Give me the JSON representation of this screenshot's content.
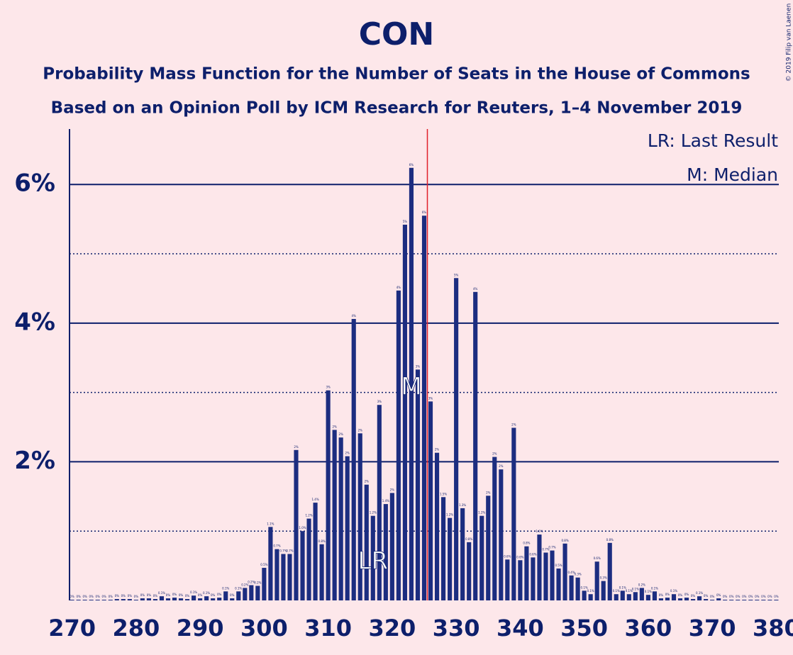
{
  "chart_data": {
    "type": "bar",
    "title": "CON",
    "subtitle": "Probability Mass Function for the Number of Seats in the House of Commons",
    "subtitle2": "Based on an Opinion Poll by ICM Research for Reuters, 1–4 November 2019",
    "legend_lr": "LR: Last Result",
    "legend_m": "M: Median",
    "copyright": "© 2019 Filip van Laenen",
    "color": "#1c2d80",
    "threshold_color": "#e0202a",
    "threshold": 325.5,
    "x": [
      270,
      271,
      272,
      273,
      274,
      275,
      276,
      277,
      278,
      279,
      280,
      281,
      282,
      283,
      284,
      285,
      286,
      287,
      288,
      289,
      290,
      291,
      292,
      293,
      294,
      295,
      296,
      297,
      298,
      299,
      300,
      301,
      302,
      303,
      304,
      305,
      306,
      307,
      308,
      309,
      310,
      311,
      312,
      313,
      314,
      315,
      316,
      317,
      318,
      319,
      320,
      321,
      322,
      323,
      324,
      325,
      326,
      327,
      328,
      329,
      330,
      331,
      332,
      333,
      334,
      335,
      336,
      337,
      338,
      339,
      340,
      341,
      342,
      343,
      344,
      345,
      346,
      347,
      348,
      349,
      350,
      351,
      352,
      353,
      354,
      355,
      356,
      357,
      358,
      359,
      360,
      361,
      362,
      363,
      364,
      365,
      366,
      367,
      368,
      369,
      370,
      371,
      372,
      373,
      374,
      375,
      376,
      377,
      378,
      379,
      380
    ],
    "values": [
      0.01,
      0.01,
      0.01,
      0.01,
      0.01,
      0.01,
      0.01,
      0.02,
      0.02,
      0.02,
      0.01,
      0.03,
      0.03,
      0.02,
      0.06,
      0.03,
      0.04,
      0.03,
      0.02,
      0.07,
      0.03,
      0.06,
      0.03,
      0.04,
      0.13,
      0.03,
      0.13,
      0.18,
      0.22,
      0.21,
      0.47,
      1.06,
      0.74,
      0.67,
      0.67,
      2.17,
      1.0,
      1.18,
      1.41,
      0.81,
      3.03,
      2.46,
      2.35,
      2.08,
      4.06,
      2.41,
      1.67,
      1.22,
      2.82,
      1.39,
      1.55,
      4.47,
      5.42,
      6.24,
      3.33,
      5.55,
      2.87,
      2.13,
      1.49,
      1.19,
      4.65,
      1.33,
      0.84,
      4.45,
      1.22,
      1.51,
      2.07,
      1.89,
      0.59,
      2.49,
      0.58,
      0.78,
      0.62,
      0.95,
      0.69,
      0.72,
      0.46,
      0.82,
      0.36,
      0.33,
      0.14,
      0.09,
      0.56,
      0.28,
      0.83,
      0.09,
      0.14,
      0.09,
      0.12,
      0.18,
      0.08,
      0.13,
      0.03,
      0.04,
      0.09,
      0.03,
      0.04,
      0.02,
      0.06,
      0.02,
      0.01,
      0.03,
      0.01,
      0.01,
      0.01,
      0.01,
      0.01,
      0.01,
      0.01,
      0.01,
      0.01
    ],
    "value_labels": [
      "0%",
      "0%",
      "0%",
      "0%",
      "0%",
      "0%",
      "0%",
      "0%",
      "0%",
      "0%",
      "0%",
      "0%",
      "0%",
      "0%",
      "0.1%",
      "0%",
      "0%",
      "0%",
      "0%",
      "0.1%",
      "0%",
      "0.1%",
      "0%",
      "0%",
      "0.1%",
      "0%",
      "0.1%",
      "0.2%",
      "0.2%",
      "0.2%",
      "0.5%",
      "1.1%",
      "0.7%",
      "0.7%",
      "0.7%",
      "2%",
      "1.0%",
      "1.2%",
      "1.4%",
      "0.8%",
      "3%",
      "2%",
      "2%",
      "2%",
      "4%",
      "2%",
      "2%",
      "1.2%",
      "3%",
      "1.4%",
      "2%",
      "4%",
      "5%",
      "6%",
      "3%",
      "6%",
      "3%",
      "2%",
      "1.5%",
      "1.2%",
      "5%",
      "1.3%",
      "0.8%",
      "4%",
      "1.2%",
      "2%",
      "2%",
      "2%",
      "0.6%",
      "2%",
      "0.6%",
      "0.8%",
      "0.6%",
      "1.0%",
      "0.7%",
      "0.7%",
      "0.5%",
      "0.8%",
      "0.4%",
      "0.3%",
      "0.1%",
      "0.1%",
      "0.6%",
      "0.3%",
      "0.8%",
      "0.1%",
      "0.1%",
      "0.1%",
      "0.1%",
      "0.2%",
      "0.1%",
      "0.1%",
      "0%",
      "0%",
      "0.1%",
      "0%",
      "0%",
      "0%",
      "0.1%",
      "0%",
      "0%",
      "0%",
      "0%",
      "0%",
      "0%",
      "0%",
      "0%",
      "0%",
      "0%",
      "0%",
      "0%"
    ],
    "annotations": [
      {
        "text": "LR",
        "x": 317
      },
      {
        "text": "M",
        "x": 323
      }
    ],
    "xlim": [
      269.6,
      380.4
    ],
    "xticks": [
      270,
      280,
      290,
      300,
      310,
      320,
      330,
      340,
      350,
      360,
      370,
      380
    ],
    "ylim": [
      0,
      6.8
    ],
    "yticks": [
      {
        "value": 2,
        "label": "2%"
      },
      {
        "value": 4,
        "label": "4%"
      },
      {
        "value": 6,
        "label": "6%"
      }
    ],
    "minor_yticks": [
      1,
      3,
      5
    ],
    "grid": true
  }
}
